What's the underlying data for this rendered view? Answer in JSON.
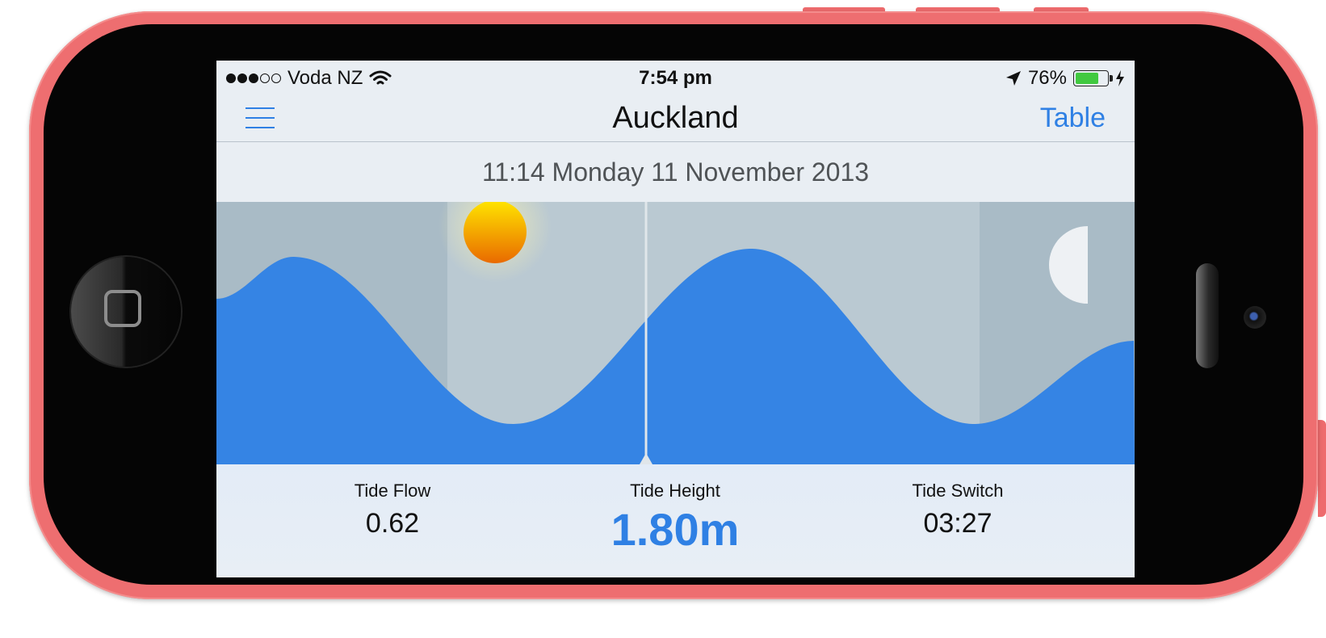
{
  "status_bar": {
    "signal_dots": "●●●○○",
    "carrier": "Voda NZ",
    "time": "7:54 pm",
    "battery_percent": "76%",
    "battery_level": 0.76,
    "icons": [
      "signal-dots-icon",
      "wifi-icon",
      "location-arrow-icon",
      "battery-icon",
      "charging-bolt-icon"
    ]
  },
  "nav": {
    "title": "Auckland",
    "right_button": "Table",
    "left_icon": "menu-icon"
  },
  "date_header": "11:14 Monday 11 November 2013",
  "tide_chart": {
    "icons": [
      "sun-icon",
      "half-moon-icon",
      "current-time-marker-icon"
    ],
    "colors": {
      "water": "#3584e4",
      "night": "#a9bbc6",
      "day": "#bac9d2",
      "sun_top": "#ffe500",
      "sun_bottom": "#e96a00",
      "moon": "#eef1f4"
    }
  },
  "readouts": {
    "tide_flow": {
      "label": "Tide Flow",
      "value": "0.62"
    },
    "tide_height": {
      "label": "Tide Height",
      "value": "1.80m"
    },
    "tide_switch": {
      "label": "Tide Switch",
      "value": "03:27"
    }
  }
}
